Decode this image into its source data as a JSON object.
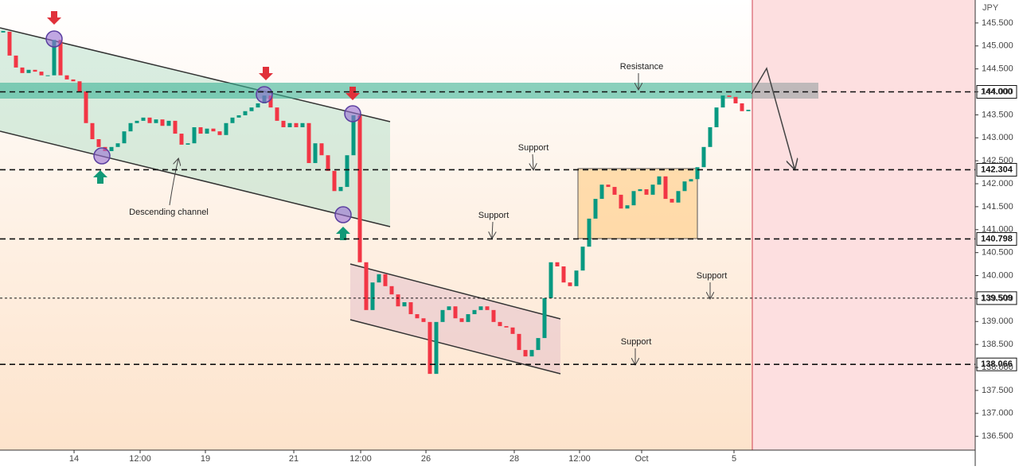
{
  "chart_data": {
    "type": "candlestick",
    "y_axis_label": "JPY",
    "close": [
      145.31,
      144.79,
      144.53,
      144.41,
      144.48,
      144.44,
      144.36,
      144.36,
      145.13,
      144.36,
      144.27,
      144.23,
      144.01,
      143.32,
      142.97,
      142.8,
      142.71,
      142.8,
      142.88,
      143.14,
      143.32,
      143.37,
      143.44,
      143.32,
      143.4,
      143.26,
      143.37,
      143.09,
      142.85,
      142.88,
      143.23,
      143.09,
      143.2,
      143.14,
      143.06,
      143.32,
      143.44,
      143.49,
      143.58,
      143.66,
      143.75,
      143.92,
      143.66,
      143.37,
      143.23,
      143.32,
      143.23,
      143.32,
      142.45,
      142.88,
      142.62,
      142.28,
      141.84,
      141.93,
      142.62,
      143.49,
      140.29,
      139.25,
      139.85,
      140.03,
      139.77,
      139.59,
      139.33,
      139.42,
      139.16,
      139.07,
      138.99,
      137.86,
      138.99,
      139.25,
      139.33,
      139.07,
      138.99,
      139.16,
      139.25,
      139.33,
      139.25,
      138.99,
      138.9,
      138.87,
      138.73,
      138.38,
      138.24,
      138.38,
      138.64,
      139.51,
      140.29,
      140.2,
      139.85,
      139.77,
      140.11,
      140.63,
      141.24,
      141.67,
      141.98,
      141.93,
      141.76,
      141.46,
      141.53,
      141.84,
      141.88,
      141.76,
      141.98,
      142.16,
      141.67,
      141.59,
      141.84,
      142.05,
      142.1,
      142.36,
      142.8,
      143.23,
      143.66,
      143.92,
      143.89,
      143.75,
      143.58,
      143.61
    ],
    "up_color": "#089981",
    "down_color": "#f23645",
    "ylim": [
      136.2,
      146.0
    ],
    "yticks": [
      {
        "value": 136.5,
        "label": "136.500"
      },
      {
        "value": 137,
        "label": "137.000"
      },
      {
        "value": 137.5,
        "label": "137.500"
      },
      {
        "value": 138,
        "label": "138.000"
      },
      {
        "value": 138.5,
        "label": "138.500"
      },
      {
        "value": 139,
        "label": "139.000"
      },
      {
        "value": 139.5,
        "label": "139.500"
      },
      {
        "value": 140,
        "label": "140.000"
      },
      {
        "value": 140.5,
        "label": "140.500"
      },
      {
        "value": 141,
        "label": "141.000"
      },
      {
        "value": 141.5,
        "label": "141.500"
      },
      {
        "value": 142,
        "label": "142.000"
      },
      {
        "value": 142.5,
        "label": "142.500"
      },
      {
        "value": 143,
        "label": "143.000"
      },
      {
        "value": 143.5,
        "label": "143.500"
      },
      {
        "value": 144,
        "label": "144.000"
      },
      {
        "value": 144.5,
        "label": "144.500"
      },
      {
        "value": 145,
        "label": "145.000"
      },
      {
        "value": 145.5,
        "label": "145.500"
      }
    ],
    "xlim": [
      -0.5,
      152.625
    ],
    "xticks": [
      {
        "value": 11.13,
        "label": "14"
      },
      {
        "value": 21.5,
        "label": "12:00"
      },
      {
        "value": 31.75,
        "label": "19"
      },
      {
        "value": 45.63,
        "label": "21"
      },
      {
        "value": 56.13,
        "label": "12:00"
      },
      {
        "value": 66.38,
        "label": "26"
      },
      {
        "value": 80.25,
        "label": "28"
      },
      {
        "value": 90.5,
        "label": "12:00"
      },
      {
        "value": 100.25,
        "label": "Oct"
      },
      {
        "value": 114.75,
        "label": "5"
      }
    ],
    "levels": [
      {
        "value": 144,
        "label": "144.000",
        "style": "dashed"
      },
      {
        "value": 142.304,
        "label": "142.304",
        "style": "dashed"
      },
      {
        "value": 140.798,
        "label": "140.798",
        "style": "dashed"
      },
      {
        "value": 139.509,
        "label": "139.509",
        "style": "dotted"
      },
      {
        "value": 138.066,
        "label": "138.066",
        "style": "dashed"
      }
    ],
    "annotations": [
      "Resistance",
      "Support",
      "Support",
      "Support",
      "Support",
      "Descending channel"
    ]
  }
}
